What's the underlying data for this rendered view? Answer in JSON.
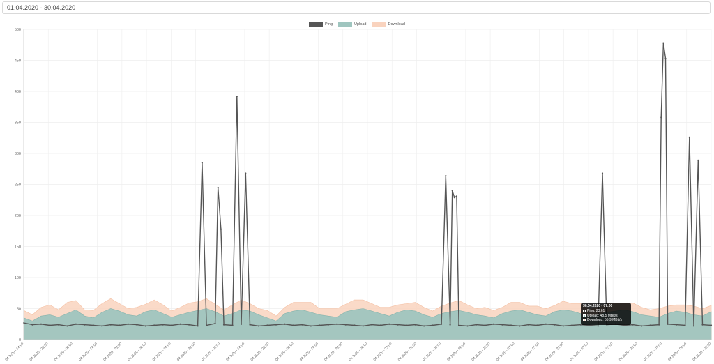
{
  "date_range": {
    "value": "01.04.2020 - 30.04.2020"
  },
  "legend": [
    {
      "label": "Ping",
      "color": "#555555"
    },
    {
      "label": "Upload",
      "color": "#9fc5bf"
    },
    {
      "label": "Download",
      "color": "#f9d3be"
    }
  ],
  "tooltip": {
    "title": "30.04.2020 - 07:00",
    "rows": [
      {
        "text": "Ping: 23.61",
        "color": "#555555"
      },
      {
        "text": "Upload: 48.5 MBit/s",
        "color": "#9fc5bf"
      },
      {
        "text": "Download: 55.9 MBit/s",
        "color": "#f9d3be"
      }
    ]
  },
  "chart_data": {
    "type": "line",
    "ylim": [
      0,
      500
    ],
    "yticks": [
      0,
      50,
      100,
      150,
      200,
      250,
      300,
      350,
      400,
      450,
      500
    ],
    "grid": true,
    "legend_position": "top",
    "xtick_labels": [
      "04.2020 - 14:00",
      "04.2020 - 22:00",
      "04.2020 - 06:00",
      "04.2020 - 14:00",
      "04.2020 - 22:00",
      "04.2020 - 06:00",
      "04.2020 - 14:00",
      "04.2020 - 22:00",
      "04.2020 - 06:00",
      "04.2020 - 14:00",
      "04.2020 - 22:00",
      "04.2020 - 06:00",
      "04.2020 - 14:00",
      "04.2020 - 22:00",
      "04.2020 - 06:00",
      "04.2020 - 23:00",
      "04.2020 - 06:00",
      "04.2020 - 00:00",
      "04.2020 - 06:00",
      "04.2020 - 23:00",
      "04.2020 - 07:00",
      "04.2020 - 15:00",
      "04.2020 - 23:00",
      "04.2020 - 07:00",
      "04.2020 - 15:00",
      "04.2020 - 23:00",
      "04.2020 - 07:00",
      "04.2020 - 00:00",
      "04.2020 - 09:00"
    ],
    "ping_baseline": [
      27,
      24,
      25,
      23,
      24,
      22,
      25,
      24,
      23,
      22,
      24,
      23,
      25,
      24,
      22,
      23,
      24,
      23,
      25,
      24,
      22,
      23,
      26,
      24,
      23,
      25,
      24,
      22,
      23,
      24,
      25,
      23,
      24,
      22,
      23,
      24,
      25,
      24,
      23,
      22,
      24,
      23,
      25,
      24,
      23,
      24,
      22,
      23,
      25,
      24,
      23,
      22,
      24,
      23,
      25,
      24,
      23,
      22,
      24,
      23,
      25,
      24,
      22,
      23,
      24,
      23,
      22,
      24,
      25,
      23,
      24,
      22,
      23,
      24,
      25,
      24,
      23,
      22,
      24,
      23
    ],
    "upload": [
      35,
      30,
      38,
      40,
      36,
      42,
      48,
      38,
      35,
      44,
      50,
      46,
      40,
      38,
      45,
      48,
      42,
      36,
      40,
      44,
      47,
      50,
      45,
      38,
      42,
      48,
      46,
      40,
      35,
      30,
      42,
      46,
      48,
      44,
      40,
      38,
      36,
      45,
      48,
      50,
      46,
      42,
      38,
      44,
      48,
      46,
      40,
      36,
      42,
      45,
      47,
      44,
      40,
      38,
      35,
      42,
      46,
      48,
      44,
      40,
      38,
      45,
      48,
      46,
      42,
      38,
      40,
      44,
      46,
      48,
      45,
      40,
      38,
      36,
      42,
      46,
      44,
      40,
      38,
      45
    ],
    "download_extra": [
      12,
      10,
      14,
      16,
      12,
      18,
      15,
      10,
      12,
      14,
      16,
      12,
      10,
      14,
      12,
      16,
      14,
      10,
      12,
      15,
      14,
      16,
      12,
      10,
      14,
      16,
      12,
      10,
      12,
      8,
      10,
      14,
      12,
      16,
      10,
      12,
      14,
      12,
      16,
      14,
      12,
      10,
      14,
      12,
      10,
      14,
      12,
      10,
      12,
      14,
      16,
      12,
      10,
      14,
      12,
      10,
      14,
      12,
      10,
      14,
      12,
      10,
      14,
      12,
      16,
      10,
      12,
      14,
      12,
      10,
      14,
      12,
      10,
      14,
      12,
      10,
      12,
      14,
      12,
      10
    ],
    "ping_spikes": [
      {
        "i": 20,
        "values": [
          285
        ]
      },
      {
        "i": 22,
        "values": [
          245,
          178
        ]
      },
      {
        "i": 24,
        "values": [
          392
        ]
      },
      {
        "i": 25,
        "values": [
          268
        ]
      },
      {
        "i": 48,
        "values": [
          264
        ]
      },
      {
        "i": 49,
        "values": [
          240,
          229,
          231
        ]
      },
      {
        "i": 66,
        "values": [
          268
        ]
      },
      {
        "i": 73,
        "values": [
          358,
          478,
          453
        ]
      },
      {
        "i": 76,
        "values": [
          326
        ]
      },
      {
        "i": 77,
        "values": [
          289
        ]
      }
    ]
  }
}
